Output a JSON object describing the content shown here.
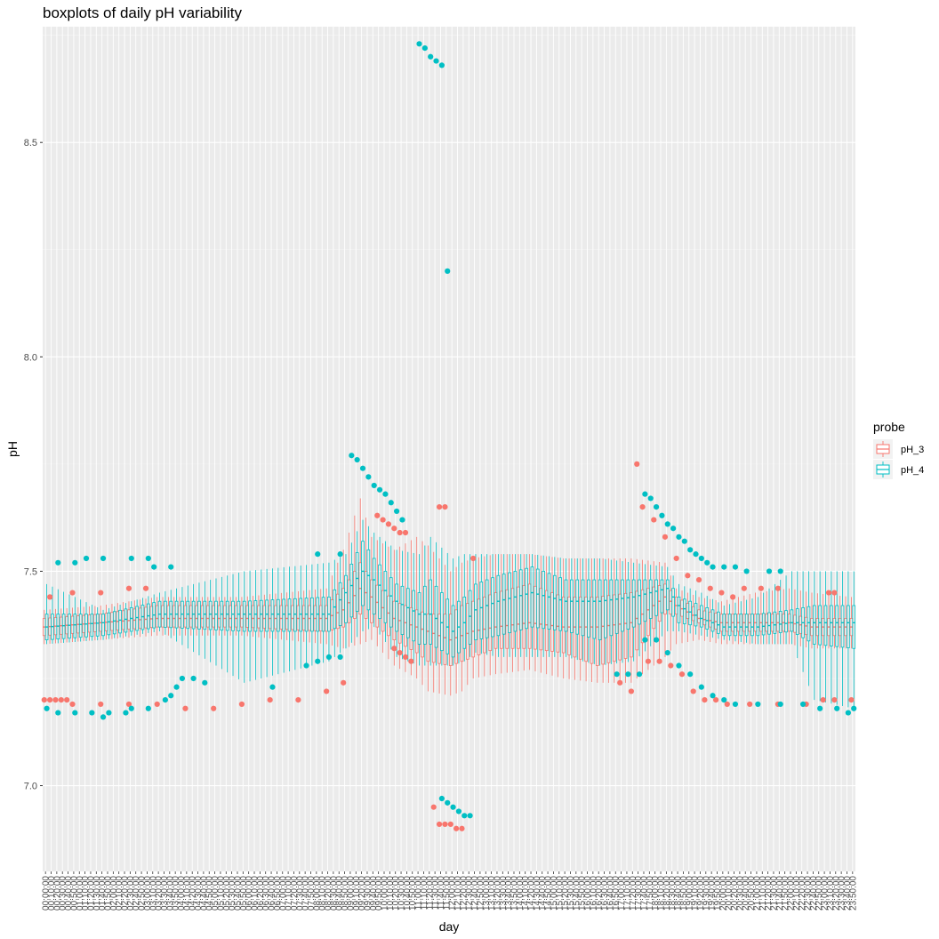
{
  "chart_data": {
    "type": "boxplot",
    "title": "boxplots of daily pH variability",
    "xlabel": "day",
    "ylabel": "pH",
    "ylim": [
      6.8,
      8.77
    ],
    "yticks": [
      7.0,
      7.5,
      8.0,
      8.5
    ],
    "x_interval_minutes": 10,
    "x_first": "00:00:00",
    "x_last": "23:50:00",
    "grid": true,
    "legend": {
      "title": "probe",
      "position": "right",
      "entries": [
        {
          "name": "pH_3",
          "color": "#F8766D"
        },
        {
          "name": "pH_4",
          "color": "#00BFC4"
        }
      ]
    },
    "series": [
      {
        "name": "pH_3",
        "color": "#F8766D",
        "knots": {
          "t": [
            0,
            10,
            20,
            35,
            50,
            53,
            56,
            58,
            62,
            66,
            68,
            72,
            74,
            76,
            80,
            86,
            92,
            98,
            104,
            110,
            112,
            116,
            120,
            126,
            132,
            136,
            143
          ],
          "q1": [
            7.35,
            7.36,
            7.37,
            7.37,
            7.36,
            7.37,
            7.4,
            7.38,
            7.34,
            7.31,
            7.29,
            7.28,
            7.29,
            7.3,
            7.32,
            7.32,
            7.31,
            7.28,
            7.3,
            7.4,
            7.4,
            7.38,
            7.36,
            7.36,
            7.36,
            7.35,
            7.35
          ],
          "med": [
            7.37,
            7.38,
            7.39,
            7.39,
            7.39,
            7.41,
            7.46,
            7.44,
            7.39,
            7.37,
            7.36,
            7.34,
            7.35,
            7.36,
            7.37,
            7.38,
            7.37,
            7.37,
            7.38,
            7.44,
            7.42,
            7.39,
            7.38,
            7.38,
            7.38,
            7.37,
            7.37
          ],
          "q3": [
            7.39,
            7.4,
            7.42,
            7.42,
            7.42,
            7.46,
            7.52,
            7.48,
            7.43,
            7.41,
            7.4,
            7.4,
            7.42,
            7.43,
            7.45,
            7.47,
            7.44,
            7.44,
            7.45,
            7.47,
            7.44,
            7.41,
            7.4,
            7.4,
            7.4,
            7.39,
            7.39
          ],
          "lo": [
            7.33,
            7.34,
            7.35,
            7.35,
            7.33,
            7.32,
            7.33,
            7.34,
            7.28,
            7.25,
            7.22,
            7.21,
            7.22,
            7.25,
            7.26,
            7.27,
            7.25,
            7.24,
            7.24,
            7.3,
            7.33,
            7.34,
            7.33,
            7.33,
            7.33,
            7.32,
            7.32
          ],
          "hi": [
            7.41,
            7.42,
            7.44,
            7.44,
            7.46,
            7.55,
            7.67,
            7.58,
            7.55,
            7.58,
            7.56,
            7.5,
            7.52,
            7.53,
            7.54,
            7.54,
            7.53,
            7.53,
            7.53,
            7.52,
            7.46,
            7.44,
            7.43,
            7.45,
            7.46,
            7.45,
            7.44
          ]
        },
        "outliers": [
          {
            "t": 0,
            "y": 7.2
          },
          {
            "t": 1,
            "y": 7.2
          },
          {
            "t": 2,
            "y": 7.2
          },
          {
            "t": 3,
            "y": 7.2
          },
          {
            "t": 4,
            "y": 7.2
          },
          {
            "t": 5,
            "y": 7.19
          },
          {
            "t": 10,
            "y": 7.19
          },
          {
            "t": 15,
            "y": 7.19
          },
          {
            "t": 20,
            "y": 7.19
          },
          {
            "t": 25,
            "y": 7.18
          },
          {
            "t": 30,
            "y": 7.18
          },
          {
            "t": 35,
            "y": 7.19
          },
          {
            "t": 40,
            "y": 7.2
          },
          {
            "t": 45,
            "y": 7.2
          },
          {
            "t": 50,
            "y": 7.22
          },
          {
            "t": 53,
            "y": 7.24
          },
          {
            "t": 1,
            "y": 7.44
          },
          {
            "t": 5,
            "y": 7.45
          },
          {
            "t": 10,
            "y": 7.45
          },
          {
            "t": 15,
            "y": 7.46
          },
          {
            "t": 18,
            "y": 7.46
          },
          {
            "t": 59,
            "y": 7.63
          },
          {
            "t": 60,
            "y": 7.62
          },
          {
            "t": 61,
            "y": 7.61
          },
          {
            "t": 62,
            "y": 7.6
          },
          {
            "t": 63,
            "y": 7.59
          },
          {
            "t": 64,
            "y": 7.59
          },
          {
            "t": 62,
            "y": 7.32
          },
          {
            "t": 63,
            "y": 7.31
          },
          {
            "t": 64,
            "y": 7.3
          },
          {
            "t": 65,
            "y": 7.29
          },
          {
            "t": 70,
            "y": 7.65
          },
          {
            "t": 71,
            "y": 7.65
          },
          {
            "t": 69,
            "y": 6.95
          },
          {
            "t": 70,
            "y": 6.91
          },
          {
            "t": 71,
            "y": 6.91
          },
          {
            "t": 72,
            "y": 6.91
          },
          {
            "t": 73,
            "y": 6.9
          },
          {
            "t": 74,
            "y": 6.9
          },
          {
            "t": 76,
            "y": 7.53
          },
          {
            "t": 102,
            "y": 7.24
          },
          {
            "t": 104,
            "y": 7.22
          },
          {
            "t": 105,
            "y": 7.75
          },
          {
            "t": 106,
            "y": 7.65
          },
          {
            "t": 108,
            "y": 7.62
          },
          {
            "t": 110,
            "y": 7.58
          },
          {
            "t": 112,
            "y": 7.53
          },
          {
            "t": 114,
            "y": 7.49
          },
          {
            "t": 116,
            "y": 7.48
          },
          {
            "t": 118,
            "y": 7.46
          },
          {
            "t": 120,
            "y": 7.45
          },
          {
            "t": 122,
            "y": 7.44
          },
          {
            "t": 124,
            "y": 7.46
          },
          {
            "t": 127,
            "y": 7.46
          },
          {
            "t": 130,
            "y": 7.46
          },
          {
            "t": 107,
            "y": 7.29
          },
          {
            "t": 109,
            "y": 7.29
          },
          {
            "t": 111,
            "y": 7.28
          },
          {
            "t": 113,
            "y": 7.26
          },
          {
            "t": 115,
            "y": 7.22
          },
          {
            "t": 117,
            "y": 7.2
          },
          {
            "t": 119,
            "y": 7.2
          },
          {
            "t": 121,
            "y": 7.19
          },
          {
            "t": 125,
            "y": 7.19
          },
          {
            "t": 130,
            "y": 7.19
          },
          {
            "t": 135,
            "y": 7.19
          },
          {
            "t": 138,
            "y": 7.2
          },
          {
            "t": 140,
            "y": 7.2
          },
          {
            "t": 143,
            "y": 7.2
          },
          {
            "t": 139,
            "y": 7.45
          },
          {
            "t": 140,
            "y": 7.45
          }
        ]
      },
      {
        "name": "pH_4",
        "color": "#00BFC4",
        "knots": {
          "t": [
            0,
            10,
            20,
            35,
            50,
            53,
            56,
            58,
            62,
            66,
            68,
            72,
            74,
            76,
            80,
            86,
            92,
            98,
            104,
            110,
            112,
            116,
            120,
            126,
            132,
            136,
            143
          ],
          "q1": [
            7.34,
            7.35,
            7.37,
            7.36,
            7.36,
            7.38,
            7.42,
            7.4,
            7.36,
            7.33,
            7.33,
            7.3,
            7.32,
            7.34,
            7.35,
            7.37,
            7.36,
            7.34,
            7.37,
            7.41,
            7.38,
            7.37,
            7.35,
            7.35,
            7.36,
            7.33,
            7.32
          ],
          "med": [
            7.37,
            7.38,
            7.4,
            7.4,
            7.4,
            7.45,
            7.5,
            7.48,
            7.43,
            7.4,
            7.4,
            7.36,
            7.38,
            7.41,
            7.43,
            7.45,
            7.43,
            7.43,
            7.44,
            7.46,
            7.42,
            7.39,
            7.37,
            7.37,
            7.38,
            7.38,
            7.38
          ],
          "q3": [
            7.4,
            7.4,
            7.43,
            7.43,
            7.44,
            7.49,
            7.57,
            7.53,
            7.47,
            7.45,
            7.48,
            7.42,
            7.44,
            7.47,
            7.49,
            7.51,
            7.48,
            7.48,
            7.48,
            7.48,
            7.44,
            7.42,
            7.4,
            7.4,
            7.41,
            7.42,
            7.42
          ],
          "lo": [
            7.33,
            7.34,
            7.36,
            7.24,
            7.29,
            7.32,
            7.36,
            7.37,
            7.3,
            7.28,
            7.28,
            7.28,
            7.29,
            7.31,
            7.3,
            7.3,
            7.3,
            7.28,
            7.29,
            7.36,
            7.36,
            7.35,
            7.34,
            7.33,
            7.33,
            7.2,
            7.18
          ],
          "hi": [
            7.47,
            7.41,
            7.45,
            7.5,
            7.52,
            7.54,
            7.62,
            7.59,
            7.55,
            7.54,
            7.58,
            7.53,
            7.54,
            7.54,
            7.54,
            7.54,
            7.53,
            7.53,
            7.52,
            7.51,
            7.47,
            7.45,
            7.42,
            7.44,
            7.5,
            7.5,
            7.5
          ]
        },
        "outliers": [
          {
            "t": 0,
            "y": 7.18
          },
          {
            "t": 2,
            "y": 7.17
          },
          {
            "t": 5,
            "y": 7.17
          },
          {
            "t": 8,
            "y": 7.17
          },
          {
            "t": 10,
            "y": 7.16
          },
          {
            "t": 11,
            "y": 7.17
          },
          {
            "t": 14,
            "y": 7.17
          },
          {
            "t": 15,
            "y": 7.18
          },
          {
            "t": 18,
            "y": 7.18
          },
          {
            "t": 21,
            "y": 7.2
          },
          {
            "t": 22,
            "y": 7.21
          },
          {
            "t": 23,
            "y": 7.23
          },
          {
            "t": 24,
            "y": 7.25
          },
          {
            "t": 26,
            "y": 7.25
          },
          {
            "t": 28,
            "y": 7.24
          },
          {
            "t": 40,
            "y": 7.23
          },
          {
            "t": 46,
            "y": 7.28
          },
          {
            "t": 48,
            "y": 7.29
          },
          {
            "t": 50,
            "y": 7.3
          },
          {
            "t": 52,
            "y": 7.3
          },
          {
            "t": 2,
            "y": 7.52
          },
          {
            "t": 5,
            "y": 7.52
          },
          {
            "t": 7,
            "y": 7.53
          },
          {
            "t": 10,
            "y": 7.53
          },
          {
            "t": 15,
            "y": 7.53
          },
          {
            "t": 18,
            "y": 7.53
          },
          {
            "t": 19,
            "y": 7.51
          },
          {
            "t": 22,
            "y": 7.51
          },
          {
            "t": 48,
            "y": 7.54
          },
          {
            "t": 52,
            "y": 7.54
          },
          {
            "t": 54,
            "y": 7.77
          },
          {
            "t": 55,
            "y": 7.76
          },
          {
            "t": 56,
            "y": 7.74
          },
          {
            "t": 57,
            "y": 7.72
          },
          {
            "t": 58,
            "y": 7.7
          },
          {
            "t": 59,
            "y": 7.69
          },
          {
            "t": 60,
            "y": 7.68
          },
          {
            "t": 61,
            "y": 7.66
          },
          {
            "t": 62,
            "y": 7.64
          },
          {
            "t": 63,
            "y": 7.62
          },
          {
            "t": 66,
            "y": 8.73
          },
          {
            "t": 67,
            "y": 8.72
          },
          {
            "t": 68,
            "y": 8.7
          },
          {
            "t": 69,
            "y": 8.69
          },
          {
            "t": 70,
            "y": 8.68
          },
          {
            "t": 71,
            "y": 8.2
          },
          {
            "t": 70,
            "y": 6.97
          },
          {
            "t": 71,
            "y": 6.96
          },
          {
            "t": 72,
            "y": 6.95
          },
          {
            "t": 73,
            "y": 6.94
          },
          {
            "t": 74,
            "y": 6.93
          },
          {
            "t": 75,
            "y": 6.93
          },
          {
            "t": 101,
            "y": 7.26
          },
          {
            "t": 103,
            "y": 7.26
          },
          {
            "t": 105,
            "y": 7.26
          },
          {
            "t": 106,
            "y": 7.34
          },
          {
            "t": 108,
            "y": 7.34
          },
          {
            "t": 110,
            "y": 7.31
          },
          {
            "t": 112,
            "y": 7.28
          },
          {
            "t": 114,
            "y": 7.26
          },
          {
            "t": 116,
            "y": 7.23
          },
          {
            "t": 118,
            "y": 7.21
          },
          {
            "t": 120,
            "y": 7.2
          },
          {
            "t": 122,
            "y": 7.19
          },
          {
            "t": 126,
            "y": 7.19
          },
          {
            "t": 130,
            "y": 7.19
          },
          {
            "t": 134,
            "y": 7.19
          },
          {
            "t": 137,
            "y": 7.18
          },
          {
            "t": 140,
            "y": 7.18
          },
          {
            "t": 142,
            "y": 7.17
          },
          {
            "t": 143,
            "y": 7.18
          },
          {
            "t": 106,
            "y": 7.68
          },
          {
            "t": 107,
            "y": 7.67
          },
          {
            "t": 108,
            "y": 7.65
          },
          {
            "t": 109,
            "y": 7.63
          },
          {
            "t": 110,
            "y": 7.61
          },
          {
            "t": 111,
            "y": 7.6
          },
          {
            "t": 112,
            "y": 7.58
          },
          {
            "t": 113,
            "y": 7.57
          },
          {
            "t": 114,
            "y": 7.55
          },
          {
            "t": 115,
            "y": 7.54
          },
          {
            "t": 116,
            "y": 7.53
          },
          {
            "t": 117,
            "y": 7.52
          },
          {
            "t": 118,
            "y": 7.51
          },
          {
            "t": 120,
            "y": 7.51
          },
          {
            "t": 122,
            "y": 7.51
          },
          {
            "t": 124,
            "y": 7.5
          },
          {
            "t": 128,
            "y": 7.5
          },
          {
            "t": 130,
            "y": 7.5
          }
        ]
      }
    ]
  }
}
